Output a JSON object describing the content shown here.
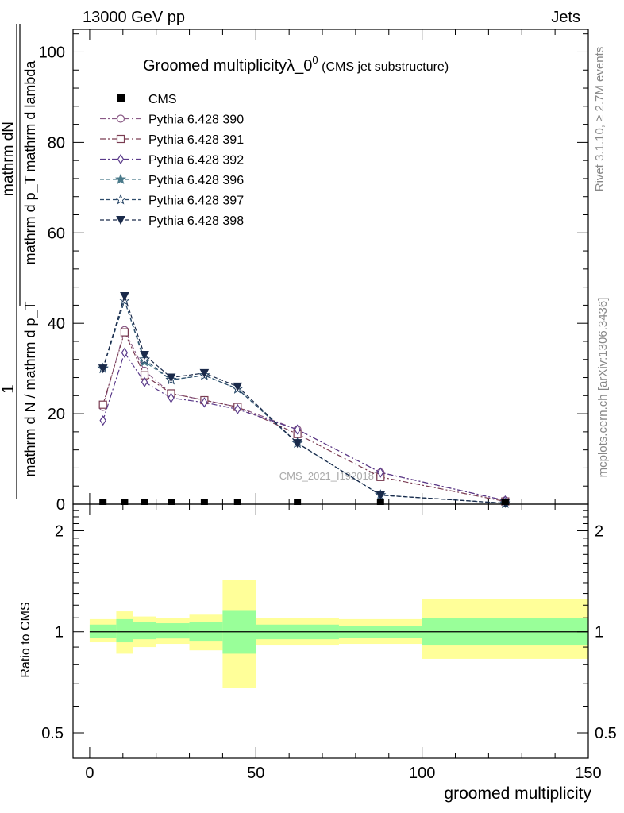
{
  "header": {
    "energy_label": "13000 GeV pp",
    "category_label": "Jets"
  },
  "side": {
    "rivet_label": "Rivet 3.1.10, ≥ 2.7M events",
    "mcplots_label": "mcplots.cern.ch [arXiv:1306.3436]"
  },
  "watermark": "CMS_2021_I1920187",
  "colors": {
    "band_outer": "#ffff99",
    "band_inner": "#99ff99",
    "data": "#000000",
    "frame": "#000000"
  },
  "chart_data": [
    {
      "type": "line",
      "title": "Groomed multiplicityλ_0",
      "title_sup": "0",
      "title_suffix": "(CMS jet substructure)",
      "ylabel_num": "mathrm dN",
      "ylabel_den": "mathrm d p_T mathrm d lambda",
      "ylabel_prefix": "1",
      "ylabel_mid": "mathrm d N / mathrm d p_T",
      "xlim": [
        -5,
        150
      ],
      "ylim": [
        0,
        105
      ],
      "yticks": [
        0,
        20,
        40,
        60,
        80,
        100
      ],
      "legend_position": "top-left",
      "data_series": {
        "name": "CMS",
        "x": [
          4,
          10.5,
          16.5,
          24.5,
          34.5,
          44.5,
          62.5,
          87.5,
          125
        ],
        "y": [
          0,
          0,
          0,
          0,
          0,
          0,
          0,
          0,
          0
        ]
      },
      "series": [
        {
          "name": "Pythia 6.428 390",
          "marker": "circle",
          "dash": "dashdot",
          "color": "#8a5a86",
          "x": [
            4,
            10.5,
            16.5,
            24.5,
            34.5,
            44.5,
            62.5,
            87.5,
            125
          ],
          "y": [
            21.5,
            38.5,
            29.5,
            24.5,
            23.0,
            21.5,
            16.5,
            7.0,
            0.8
          ]
        },
        {
          "name": "Pythia 6.428 391",
          "marker": "square",
          "dash": "dashdot",
          "color": "#7a3c52",
          "x": [
            4,
            10.5,
            16.5,
            24.5,
            34.5,
            44.5,
            62.5,
            87.5,
            125
          ],
          "y": [
            22.0,
            38.0,
            28.5,
            24.5,
            23.0,
            21.5,
            15.5,
            6.0,
            0.6
          ]
        },
        {
          "name": "Pythia 6.428 392",
          "marker": "diamond",
          "dash": "dashdot",
          "color": "#5a3a8a",
          "x": [
            4,
            10.5,
            16.5,
            24.5,
            34.5,
            44.5,
            62.5,
            87.5,
            125
          ],
          "y": [
            18.5,
            33.5,
            27.0,
            23.5,
            22.5,
            21.0,
            16.5,
            7.0,
            0.8
          ]
        },
        {
          "name": "Pythia 6.428 396",
          "marker": "star-filled",
          "dash": "dashed",
          "color": "#4a7a8a",
          "x": [
            4,
            10.5,
            16.5,
            24.5,
            34.5,
            44.5,
            62.5,
            87.5,
            125
          ],
          "y": [
            30.0,
            45.0,
            31.5,
            27.5,
            28.5,
            25.5,
            13.5,
            2.0,
            0.2
          ]
        },
        {
          "name": "Pythia 6.428 397",
          "marker": "star-open",
          "dash": "dashed",
          "color": "#2c4a6a",
          "x": [
            4,
            10.5,
            16.5,
            24.5,
            34.5,
            44.5,
            62.5,
            87.5,
            125
          ],
          "y": [
            30.0,
            45.0,
            32.0,
            27.5,
            28.5,
            25.5,
            13.5,
            2.0,
            0.2
          ]
        },
        {
          "name": "Pythia 6.428 398",
          "marker": "triangle-down",
          "dash": "dashed",
          "color": "#1a2a4a",
          "x": [
            4,
            10.5,
            16.5,
            24.5,
            34.5,
            44.5,
            62.5,
            87.5,
            125
          ],
          "y": [
            30.0,
            46.0,
            33.0,
            28.0,
            29.0,
            26.0,
            13.5,
            2.0,
            0.2
          ]
        }
      ]
    },
    {
      "type": "area",
      "title": "",
      "xlabel": "groomed multiplicity",
      "ylabel": "Ratio to CMS",
      "xlim": [
        -5,
        150
      ],
      "ylim": [
        0.42,
        2.4
      ],
      "log_y": true,
      "yticks": [
        0.5,
        1,
        2
      ],
      "ytick_labels": [
        "0.5",
        "1",
        "2"
      ],
      "xticks": [
        0,
        50,
        100,
        150
      ],
      "xtick_labels": [
        "0",
        "50",
        "100",
        "150"
      ],
      "reference_line": 1,
      "bins": [
        {
          "x0": 0,
          "x1": 8,
          "inner": [
            0.96,
            1.05
          ],
          "outer": [
            0.93,
            1.09
          ]
        },
        {
          "x0": 8,
          "x1": 13,
          "inner": [
            0.93,
            1.09
          ],
          "outer": [
            0.86,
            1.15
          ]
        },
        {
          "x0": 13,
          "x1": 20,
          "inner": [
            0.95,
            1.07
          ],
          "outer": [
            0.9,
            1.11
          ]
        },
        {
          "x0": 20,
          "x1": 30,
          "inner": [
            0.955,
            1.06
          ],
          "outer": [
            0.92,
            1.1
          ]
        },
        {
          "x0": 30,
          "x1": 40,
          "inner": [
            0.94,
            1.07
          ],
          "outer": [
            0.88,
            1.13
          ]
        },
        {
          "x0": 40,
          "x1": 50,
          "inner": [
            0.86,
            1.16
          ],
          "outer": [
            0.68,
            1.43
          ]
        },
        {
          "x0": 50,
          "x1": 75,
          "inner": [
            0.95,
            1.05
          ],
          "outer": [
            0.91,
            1.1
          ]
        },
        {
          "x0": 75,
          "x1": 100,
          "inner": [
            0.96,
            1.04
          ],
          "outer": [
            0.92,
            1.09
          ]
        },
        {
          "x0": 100,
          "x1": 150,
          "inner": [
            0.91,
            1.1
          ],
          "outer": [
            0.83,
            1.25
          ]
        }
      ]
    }
  ]
}
